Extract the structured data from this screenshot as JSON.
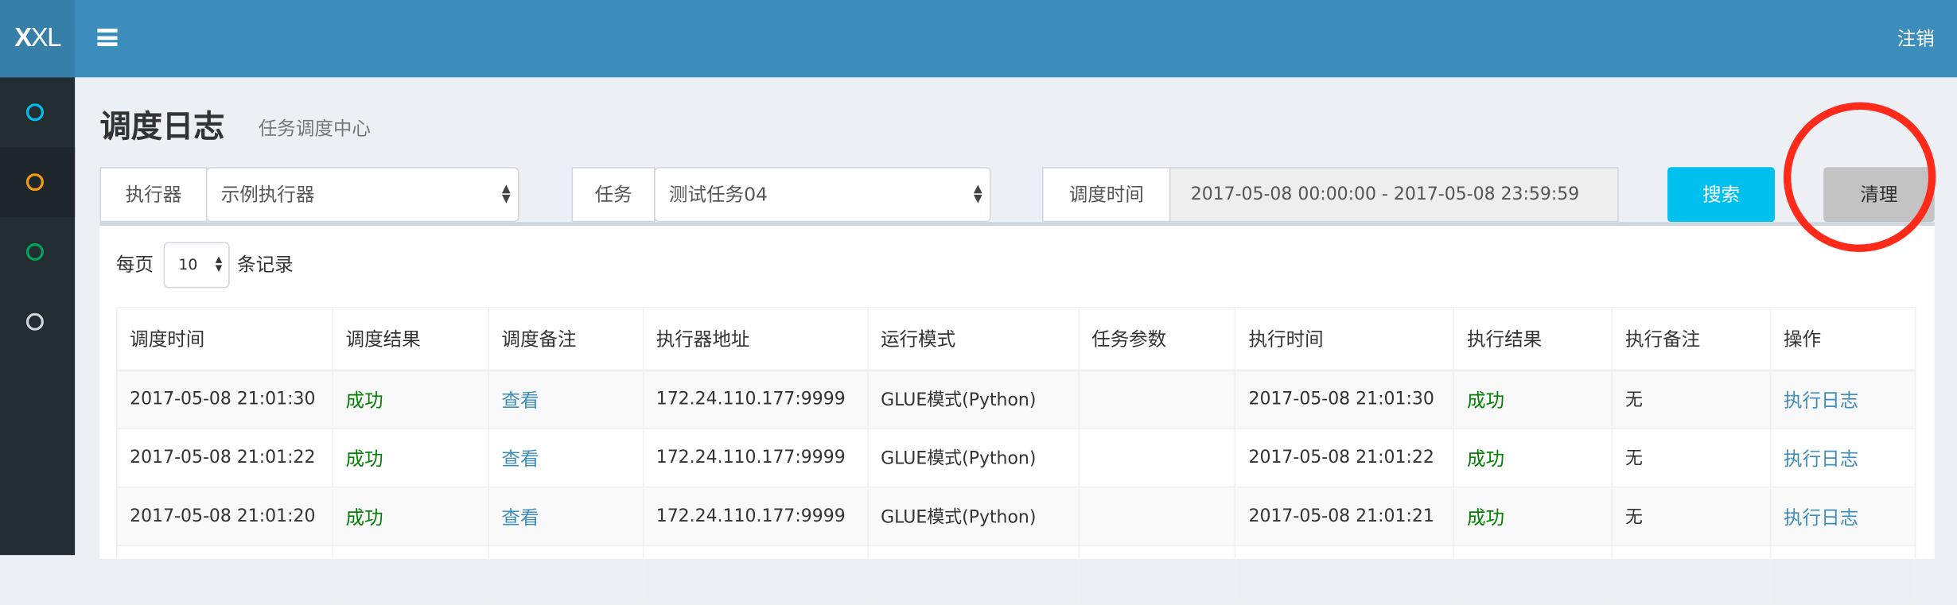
{
  "header": {
    "logo": "XXL",
    "logout_label": "注销",
    "colors": {
      "header": "#3c8dbc",
      "logo_bg": "#367fa9",
      "sidebar": "#222d32"
    }
  },
  "sidebar": {
    "items": [
      {
        "icon": "circle-outline-icon",
        "color": "#00c0ef"
      },
      {
        "icon": "circle-outline-icon",
        "color": "#f39c12",
        "active": true
      },
      {
        "icon": "circle-outline-icon",
        "color": "#00a65a"
      },
      {
        "icon": "circle-outline-icon",
        "color": "#d2d6de"
      }
    ]
  },
  "page": {
    "title": "调度日志",
    "subtitle": "任务调度中心"
  },
  "filters": {
    "executor_label": "执行器",
    "executor_value": "示例执行器",
    "job_label": "任务",
    "job_value": "测试任务04",
    "time_label": "调度时间",
    "time_value": "2017-05-08 00:00:00 - 2017-05-08 23:59:59",
    "search_label": "搜索",
    "clear_label": "清理"
  },
  "pagination": {
    "prefix": "每页",
    "page_size": "10",
    "suffix": "条记录"
  },
  "table": {
    "headers": [
      "调度时间",
      "调度结果",
      "调度备注",
      "执行器地址",
      "运行模式",
      "任务参数",
      "执行时间",
      "执行结果",
      "执行备注",
      "操作"
    ],
    "rows": [
      {
        "trigger_time": "2017-05-08 21:01:30",
        "trigger_result": "成功",
        "trigger_msg": "查看",
        "address": "172.24.110.177:9999",
        "mode": "GLUE模式(Python)",
        "params": "",
        "handle_time": "2017-05-08 21:01:30",
        "handle_result": "成功",
        "handle_msg": "无",
        "action": "执行日志"
      },
      {
        "trigger_time": "2017-05-08 21:01:22",
        "trigger_result": "成功",
        "trigger_msg": "查看",
        "address": "172.24.110.177:9999",
        "mode": "GLUE模式(Python)",
        "params": "",
        "handle_time": "2017-05-08 21:01:22",
        "handle_result": "成功",
        "handle_msg": "无",
        "action": "执行日志"
      },
      {
        "trigger_time": "2017-05-08 21:01:20",
        "trigger_result": "成功",
        "trigger_msg": "查看",
        "address": "172.24.110.177:9999",
        "mode": "GLUE模式(Python)",
        "params": "",
        "handle_time": "2017-05-08 21:01:21",
        "handle_result": "成功",
        "handle_msg": "无",
        "action": "执行日志"
      }
    ]
  },
  "annotation": {
    "color": "#ff2a1a"
  }
}
